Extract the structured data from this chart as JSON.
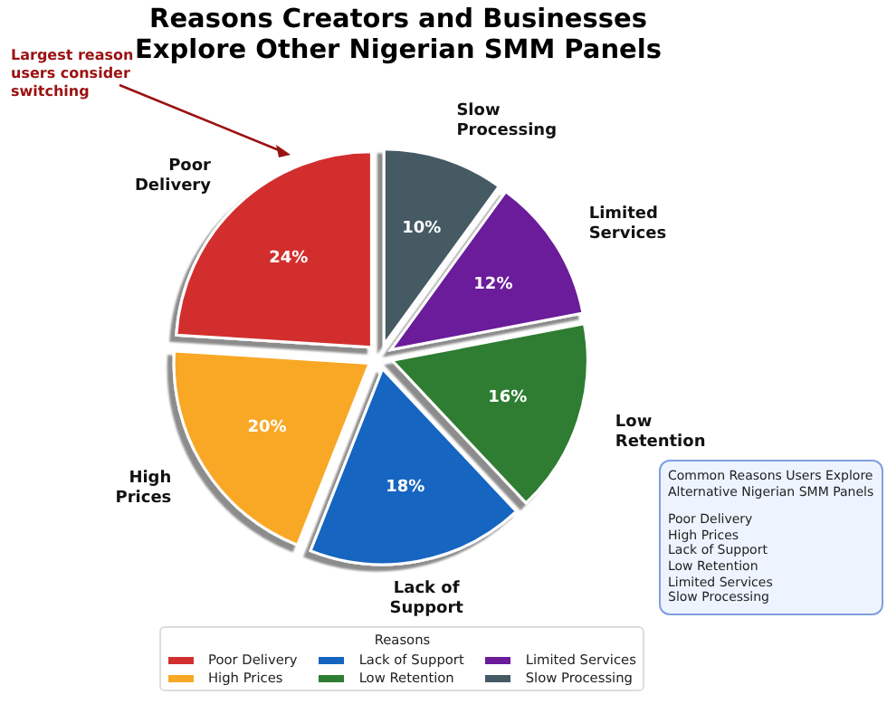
{
  "chart_data": {
    "type": "pie",
    "title": "Reasons Creators and Businesses Explore Other Nigerian SMM Panels",
    "categories": [
      "Poor Delivery",
      "High Prices",
      "Lack of Support",
      "Low Retention",
      "Limited Services",
      "Slow Processing"
    ],
    "values": [
      24,
      20,
      18,
      16,
      12,
      10
    ],
    "colors": [
      "#d32f2f",
      "#f9a825",
      "#1565c0",
      "#2e7d32",
      "#6a1b9a",
      "#455a64"
    ],
    "value_labels": [
      "24%",
      "20%",
      "18%",
      "16%",
      "12%",
      "10%"
    ],
    "legend": "bottom",
    "legend_title": "Reasons",
    "annotations": [
      "Largest reason users consider switching",
      "Common Reasons Users Explore Alternative Nigerian SMM Panels",
      "Poor Delivery",
      "High Prices",
      "Lack of Support",
      "Low Retention",
      "Limited Services",
      "Slow Processing"
    ]
  }
}
